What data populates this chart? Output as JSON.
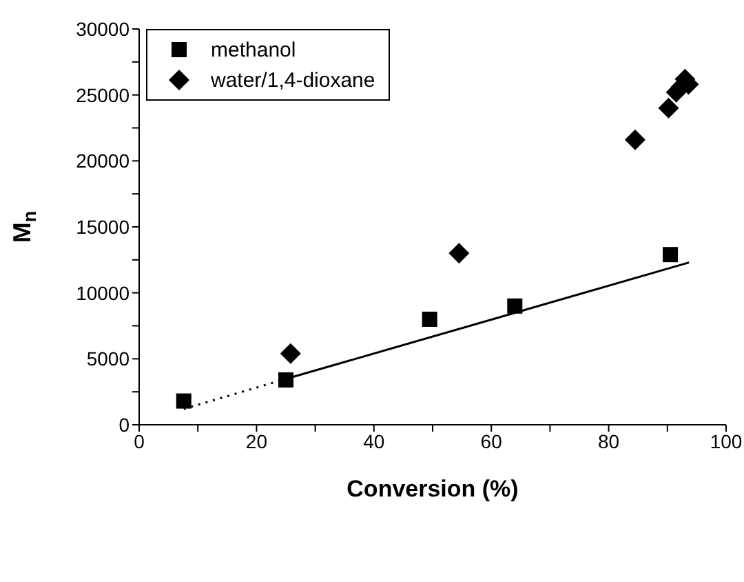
{
  "chart_data": {
    "type": "scatter",
    "xlabel": "Conversion (%)",
    "ylabel": "M$_{n}$",
    "xlim": [
      0,
      100
    ],
    "xticks": [
      0,
      {
        "value": 10,
        "label": null
      },
      20,
      {
        "value": 30,
        "label": null
      },
      40,
      {
        "value": 50,
        "label": null
      },
      60,
      {
        "value": 70,
        "label": null
      },
      80,
      {
        "value": 90,
        "label": null
      },
      100
    ],
    "ylim": [
      0,
      30000
    ],
    "yticks": [
      0,
      {
        "value": 2500,
        "label": null
      },
      5000,
      {
        "value": 7500,
        "label": null
      },
      10000,
      {
        "value": 12500,
        "label": null
      },
      15000,
      {
        "value": 17500,
        "label": null
      },
      20000,
      {
        "value": 22500,
        "label": null
      },
      25000,
      {
        "value": 27500,
        "label": null
      },
      30000
    ],
    "grid": false,
    "legend": "top left",
    "series": [
      {
        "name": "methanol",
        "color": "#000000",
        "marker": "square",
        "x": [
          7.6,
          25,
          49.5,
          64,
          90.5
        ],
        "values": [
          1800,
          3400,
          8000,
          9000,
          12900
        ]
      },
      {
        "name": "water/1,4-dioxane",
        "color": "#000000",
        "marker": "diamond",
        "x": [
          25.8,
          54.5,
          84.5,
          90.2,
          91.5,
          92.3,
          93,
          93.6
        ],
        "values": [
          5400,
          13000,
          21600,
          24000,
          25200,
          25600,
          26200,
          25800
        ]
      },
      {
        "type": "line",
        "color": "#000000",
        "marker": "none",
        "line_style": "dotted",
        "x": [
          7.6,
          25.2
        ],
        "values": [
          1200,
          3500
        ]
      },
      {
        "type": "line",
        "color": "#000000",
        "marker": "none",
        "line_style": "solid",
        "x": [
          25.2,
          93.7
        ],
        "values": [
          3500,
          12300
        ]
      }
    ]
  }
}
